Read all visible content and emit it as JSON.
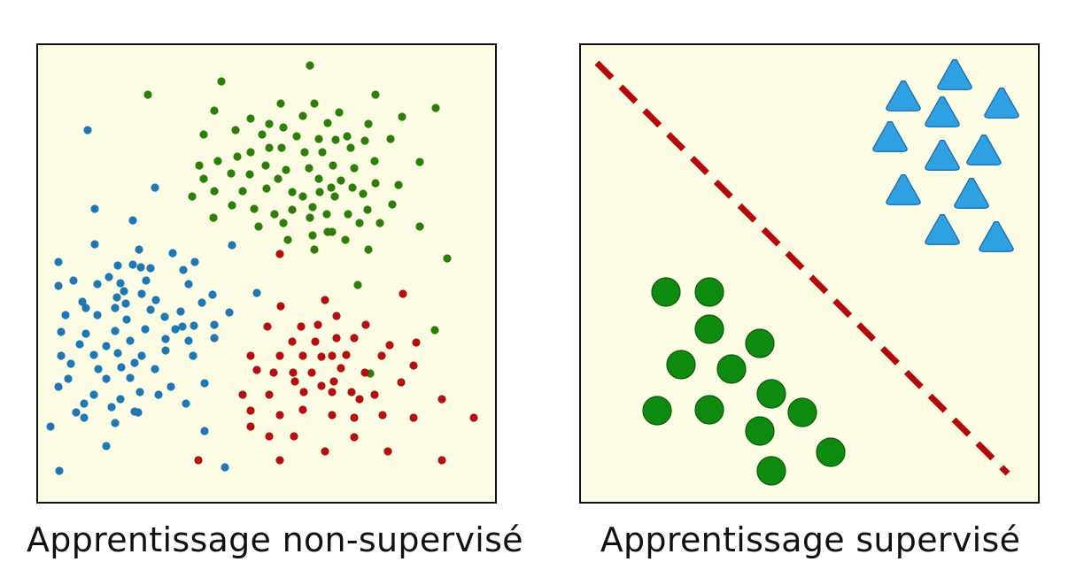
{
  "panels": {
    "unsupervised": {
      "caption": "Apprentissage non-supervisé",
      "clusters": [
        {
          "name": "blue",
          "color": "#1f77b4",
          "points": [
            [
              99,
              147
            ],
            [
              175,
              212
            ],
            [
              107,
              236
            ],
            [
              150,
              249
            ],
            [
              107,
              276
            ],
            [
              262,
              277
            ],
            [
              157,
              282
            ],
            [
              195,
              286
            ],
            [
              66,
              296
            ],
            [
              133,
              300
            ],
            [
              150,
              299
            ],
            [
              220,
              296
            ],
            [
              170,
              303
            ],
            [
              123,
              313
            ],
            [
              159,
              302
            ],
            [
              207,
              305
            ],
            [
              66,
              323
            ],
            [
              83,
              317
            ],
            [
              110,
              321
            ],
            [
              140,
              329
            ],
            [
              165,
              317
            ],
            [
              93,
              341
            ],
            [
              132,
              336
            ],
            [
              160,
              332
            ],
            [
              176,
              339
            ],
            [
              213,
              321
            ],
            [
              240,
              333
            ],
            [
              290,
              331
            ],
            [
              97,
              348
            ],
            [
              130,
              348
            ],
            [
              142,
              343
            ],
            [
              170,
              350
            ],
            [
              204,
              352
            ],
            [
              228,
              342
            ],
            [
              259,
              353
            ],
            [
              74,
              356
            ],
            [
              110,
              356
            ],
            [
              143,
              361
            ],
            [
              186,
              358
            ],
            [
              219,
              368
            ],
            [
              242,
              367
            ],
            [
              69,
              375
            ],
            [
              97,
              377
            ],
            [
              130,
              374
            ],
            [
              164,
              372
            ],
            [
              198,
              372
            ],
            [
              206,
              369
            ],
            [
              90,
              389
            ],
            [
              120,
              391
            ],
            [
              147,
              385
            ],
            [
              187,
              383
            ],
            [
              213,
              385
            ],
            [
              242,
              382
            ],
            [
              69,
              402
            ],
            [
              106,
              401
            ],
            [
              133,
              399
            ],
            [
              160,
              402
            ],
            [
              187,
              396
            ],
            [
              218,
              402
            ],
            [
              80,
              411
            ],
            [
              111,
              417
            ],
            [
              137,
              415
            ],
            [
              152,
              410
            ],
            [
              175,
              417
            ],
            [
              77,
              428
            ],
            [
              120,
              428
            ],
            [
              147,
              427
            ],
            [
              193,
              437
            ],
            [
              231,
              433
            ],
            [
              66,
              437
            ],
            [
              106,
              446
            ],
            [
              158,
              443
            ],
            [
              95,
              456
            ],
            [
              136,
              451
            ],
            [
              179,
              446
            ],
            [
              86,
              466
            ],
            [
              126,
              460
            ],
            [
              152,
              465
            ],
            [
              210,
              456
            ],
            [
              57,
              482
            ],
            [
              95,
              472
            ],
            [
              130,
              478
            ],
            [
              156,
              466
            ],
            [
              231,
              487
            ],
            [
              120,
              504
            ],
            [
              67,
              532
            ],
            [
              254,
              528
            ],
            [
              136,
              320
            ]
          ]
        },
        {
          "name": "green",
          "color": "#2e7d0a",
          "points": [
            [
              350,
              74
            ],
            [
              167,
              107
            ],
            [
              250,
              92
            ],
            [
              424,
              107
            ],
            [
              242,
              125
            ],
            [
              317,
              117
            ],
            [
              355,
              117
            ],
            [
              383,
              127
            ],
            [
              492,
              122
            ],
            [
              283,
              134
            ],
            [
              342,
              131
            ],
            [
              454,
              132
            ],
            [
              230,
              152
            ],
            [
              266,
              147
            ],
            [
              304,
              140
            ],
            [
              320,
              144
            ],
            [
              370,
              139
            ],
            [
              416,
              140
            ],
            [
              296,
              152
            ],
            [
              335,
              154
            ],
            [
              360,
              157
            ],
            [
              379,
              158
            ],
            [
              392,
              154
            ],
            [
              412,
              159
            ],
            [
              441,
              157
            ],
            [
              225,
              187
            ],
            [
              246,
              182
            ],
            [
              268,
              177
            ],
            [
              283,
              172
            ],
            [
              304,
              167
            ],
            [
              318,
              167
            ],
            [
              344,
              172
            ],
            [
              364,
              172
            ],
            [
              396,
              167
            ],
            [
              423,
              182
            ],
            [
              474,
              183
            ],
            [
              261,
              196
            ],
            [
              282,
              197
            ],
            [
              300,
              187
            ],
            [
              323,
              192
            ],
            [
              349,
              190
            ],
            [
              376,
              187
            ],
            [
              400,
              190
            ],
            [
              230,
              202
            ],
            [
              314,
              202
            ],
            [
              360,
              202
            ],
            [
              385,
              204
            ],
            [
              398,
              212
            ],
            [
              424,
              207
            ],
            [
              450,
              209
            ],
            [
              217,
              222
            ],
            [
              242,
              216
            ],
            [
              274,
              216
            ],
            [
              301,
              213
            ],
            [
              330,
              217
            ],
            [
              342,
              222
            ],
            [
              361,
              217
            ],
            [
              374,
              212
            ],
            [
              378,
              222
            ],
            [
              410,
              219
            ],
            [
              443,
              231
            ],
            [
              262,
              232
            ],
            [
              287,
              236
            ],
            [
              310,
              242
            ],
            [
              330,
              237
            ],
            [
              353,
              234
            ],
            [
              369,
              242
            ],
            [
              393,
              242
            ],
            [
              415,
              237
            ],
            [
              241,
              246
            ],
            [
              292,
              256
            ],
            [
              320,
              252
            ],
            [
              350,
              246
            ],
            [
              375,
              262
            ],
            [
              406,
              252
            ],
            [
              429,
              252
            ],
            [
              474,
              256
            ],
            [
              353,
              266
            ],
            [
              370,
              262
            ],
            [
              390,
              271
            ],
            [
              416,
              282
            ],
            [
              325,
              271
            ],
            [
              355,
              282
            ],
            [
              505,
              292
            ],
            [
              404,
              322
            ],
            [
              491,
              373
            ],
            [
              418,
              422
            ]
          ]
        },
        {
          "name": "red",
          "color": "#b30f0f",
          "points": [
            [
              316,
              287
            ],
            [
              455,
              332
            ],
            [
              317,
              346
            ],
            [
              367,
              339
            ],
            [
              380,
              357
            ],
            [
              302,
              369
            ],
            [
              340,
              369
            ],
            [
              359,
              367
            ],
            [
              413,
              367
            ],
            [
              330,
              386
            ],
            [
              356,
              386
            ],
            [
              380,
              382
            ],
            [
              400,
              382
            ],
            [
              440,
              390
            ],
            [
              470,
              387
            ],
            [
              283,
              402
            ],
            [
              316,
              402
            ],
            [
              342,
              402
            ],
            [
              363,
              403
            ],
            [
              375,
              402
            ],
            [
              391,
              401
            ],
            [
              431,
              402
            ],
            [
              467,
              413
            ],
            [
              290,
              418
            ],
            [
              309,
              421
            ],
            [
              331,
              421
            ],
            [
              352,
              421
            ],
            [
              385,
              416
            ],
            [
              412,
              421
            ],
            [
              333,
              431
            ],
            [
              363,
              436
            ],
            [
              377,
              431
            ],
            [
              453,
              432
            ],
            [
              274,
              446
            ],
            [
              304,
              446
            ],
            [
              343,
              443
            ],
            [
              375,
              443
            ],
            [
              397,
              443
            ],
            [
              423,
              446
            ],
            [
              499,
              451
            ],
            [
              283,
              464
            ],
            [
              342,
              463
            ],
            [
              406,
              451
            ],
            [
              316,
              469
            ],
            [
              375,
              469
            ],
            [
              400,
              472
            ],
            [
              432,
              469
            ],
            [
              467,
              472
            ],
            [
              535,
              472
            ],
            [
              283,
              482
            ],
            [
              332,
              493
            ],
            [
              400,
              494
            ],
            [
              304,
              493
            ],
            [
              367,
              510
            ],
            [
              438,
              510
            ],
            [
              224,
              520
            ],
            [
              316,
              520
            ],
            [
              499,
              520
            ]
          ]
        }
      ]
    },
    "supervised": {
      "caption": "Apprentissage supervisé",
      "triangle_color": "#2fa0e2",
      "circle_color": "#0e8a0e",
      "line_color": "#b3090b",
      "triangles": [
        [
          1078,
          87
        ],
        [
          1020,
          111
        ],
        [
          1131,
          119
        ],
        [
          1064,
          129
        ],
        [
          1005,
          157
        ],
        [
          1111,
          172
        ],
        [
          1064,
          178
        ],
        [
          1020,
          217
        ],
        [
          1097,
          221
        ],
        [
          1064,
          262
        ],
        [
          1125,
          270
        ]
      ],
      "circles": [
        [
          752,
          330
        ],
        [
          801,
          330
        ],
        [
          801,
          372
        ],
        [
          858,
          388
        ],
        [
          769,
          412
        ],
        [
          826,
          417
        ],
        [
          871,
          445
        ],
        [
          742,
          464
        ],
        [
          801,
          463
        ],
        [
          906,
          466
        ],
        [
          858,
          487
        ],
        [
          938,
          511
        ],
        [
          871,
          532
        ]
      ]
    }
  }
}
